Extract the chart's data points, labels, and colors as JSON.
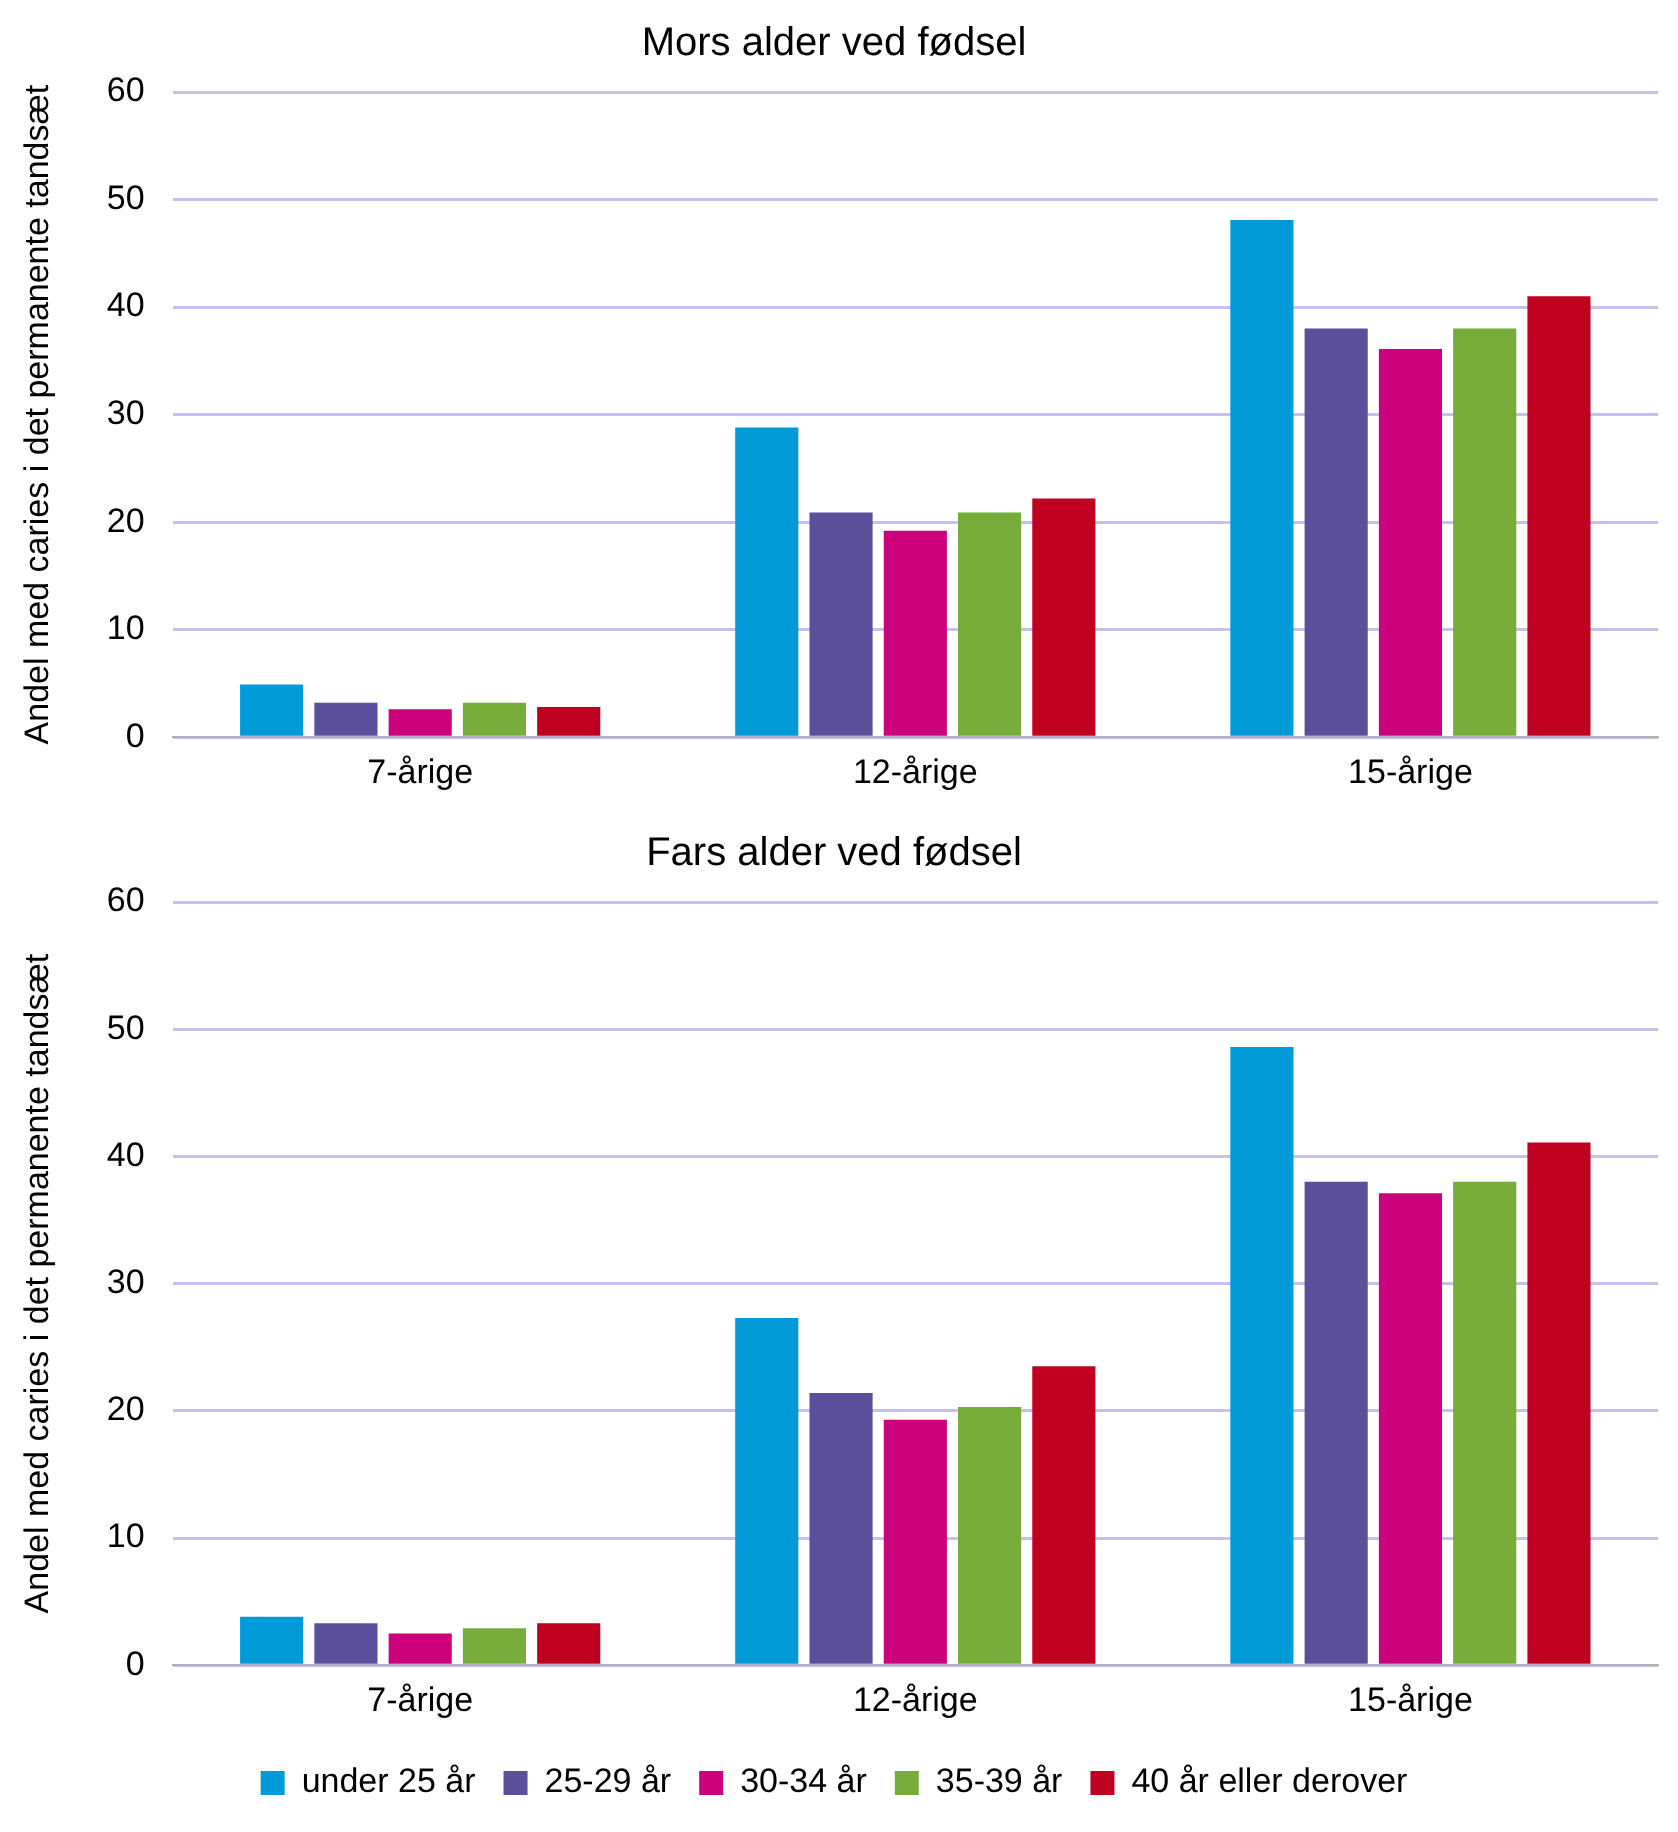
{
  "chart_data": [
    {
      "type": "bar",
      "title": "Mors alder ved fødsel",
      "ylabel": "Andel med caries i det permanente tandsæt",
      "categories": [
        "7-årige",
        "12-årige",
        "15-årige"
      ],
      "series": [
        {
          "color": "#009ad8",
          "values": [
            4.9,
            28.8,
            48.1
          ]
        },
        {
          "color": "#5b4e9b",
          "values": [
            3.2,
            20.9,
            38.0
          ]
        },
        {
          "color": "#cc007a",
          "values": [
            2.6,
            19.2,
            36.1
          ]
        },
        {
          "color": "#77ac3a",
          "values": [
            3.2,
            20.9,
            38.0
          ]
        },
        {
          "color": "#c00020",
          "values": [
            2.8,
            22.2,
            41.0
          ]
        }
      ],
      "ylim": [
        0,
        60
      ],
      "yticks": [
        0,
        10,
        20,
        30,
        40,
        50,
        60
      ],
      "grid": "y",
      "legend": false
    },
    {
      "type": "bar",
      "title": "Fars alder ved fødsel",
      "ylabel": "Andel med caries i det permanente tandsæt",
      "categories": [
        "7-årige",
        "12-årige",
        "15-årige"
      ],
      "series": [
        {
          "name": "under 25 år",
          "color": "#009ad8",
          "values": [
            3.8,
            27.3,
            48.6
          ]
        },
        {
          "name": "25-29 år",
          "color": "#5b4e9b",
          "values": [
            3.3,
            21.4,
            38.0
          ]
        },
        {
          "name": "30-34 år",
          "color": "#cc007a",
          "values": [
            2.5,
            19.3,
            37.1
          ]
        },
        {
          "name": "35-39 år",
          "color": "#77ac3a",
          "values": [
            2.9,
            20.3,
            38.0
          ]
        },
        {
          "name": "40 år eller derover",
          "color": "#c00020",
          "values": [
            3.3,
            23.5,
            41.1
          ]
        }
      ],
      "ylim": [
        0,
        60
      ],
      "yticks": [
        0,
        10,
        20,
        30,
        40,
        50,
        60
      ],
      "grid": "y",
      "legend": "bottom"
    }
  ]
}
